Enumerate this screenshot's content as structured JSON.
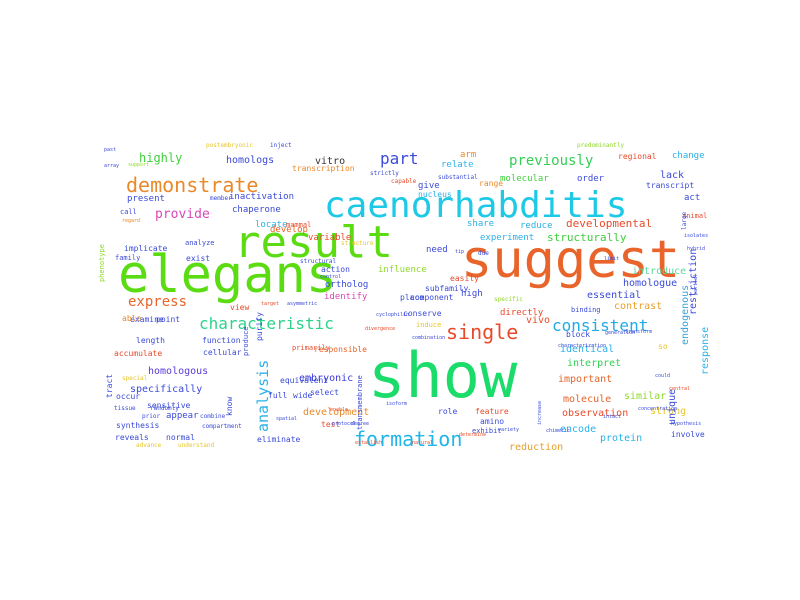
{
  "wordcloud": {
    "words": [
      {
        "text": "show",
        "color": "#1bdc6a"
      },
      {
        "text": "suggest",
        "color": "#e8642a"
      },
      {
        "text": "elegans",
        "color": "#5adb12"
      },
      {
        "text": "result",
        "color": "#5adb12"
      },
      {
        "text": "caenorhabditis",
        "color": "#1ec9e6"
      },
      {
        "text": "formation",
        "color": "#21b5e8"
      },
      {
        "text": "demonstrate",
        "color": "#e8892a"
      },
      {
        "text": "characteristic",
        "color": "#2dd38a"
      },
      {
        "text": "single",
        "color": "#e84a2a"
      },
      {
        "text": "consistent",
        "color": "#21a9e8"
      },
      {
        "text": "part",
        "color": "#3a4ad8"
      },
      {
        "text": "previously",
        "color": "#33cf55"
      },
      {
        "text": "analysis",
        "color": "#2ab1e8"
      },
      {
        "text": "provide",
        "color": "#d84ab8"
      },
      {
        "text": "express",
        "color": "#e8642a"
      },
      {
        "text": "highly",
        "color": "#3fcf3c"
      },
      {
        "text": "homologs",
        "color": "#3a4ad8"
      },
      {
        "text": "vitro",
        "color": "#333333"
      },
      {
        "text": "developmental",
        "color": "#e84a2a"
      },
      {
        "text": "structurally",
        "color": "#3fcf3c"
      },
      {
        "text": "specifically",
        "color": "#3a4ad8"
      },
      {
        "text": "homologous",
        "color": "#5a3ad8"
      },
      {
        "text": "embryonic",
        "color": "#3a3ad8"
      },
      {
        "text": "development",
        "color": "#e88a2a"
      },
      {
        "text": "observation",
        "color": "#e84a2a"
      },
      {
        "text": "reduction",
        "color": "#e8a02a"
      },
      {
        "text": "protein",
        "color": "#2ab1e8"
      },
      {
        "text": "identical",
        "color": "#2ab1e8"
      },
      {
        "text": "interpret",
        "color": "#33cf55"
      },
      {
        "text": "important",
        "color": "#e8642a"
      },
      {
        "text": "molecule",
        "color": "#e8642a"
      },
      {
        "text": "encode",
        "color": "#2ab1e8"
      },
      {
        "text": "similar",
        "color": "#8fd82a"
      },
      {
        "text": "strong",
        "color": "#e8c62a"
      },
      {
        "text": "contrast",
        "color": "#e8a02a"
      },
      {
        "text": "essential",
        "color": "#3a4ad8"
      },
      {
        "text": "homologue",
        "color": "#3a4ad8"
      },
      {
        "text": "introduce",
        "color": "#5ad8a0"
      },
      {
        "text": "restriction",
        "color": "#3a4ad8"
      },
      {
        "text": "response",
        "color": "#2ab1e8"
      },
      {
        "text": "unique",
        "color": "#3a4ad8"
      },
      {
        "text": "endogenous",
        "color": "#3aa0d8"
      },
      {
        "text": "lack",
        "color": "#3a4ad8"
      },
      {
        "text": "act",
        "color": "#3a4ad8"
      },
      {
        "text": "change",
        "color": "#2ab1e8"
      },
      {
        "text": "transcript",
        "color": "#3a4ad8"
      },
      {
        "text": "regional",
        "color": "#e84a2a"
      },
      {
        "text": "molecular",
        "color": "#3fcf3c"
      },
      {
        "text": "order",
        "color": "#3a4ad8"
      },
      {
        "text": "arm",
        "color": "#e8892a"
      },
      {
        "text": "relate",
        "color": "#2ab1e8"
      },
      {
        "text": "transcription",
        "color": "#e8892a"
      },
      {
        "text": "inactivation",
        "color": "#3a4ad8"
      },
      {
        "text": "chaperone",
        "color": "#3a4ad8"
      },
      {
        "text": "present",
        "color": "#3a4ad8"
      },
      {
        "text": "locate",
        "color": "#2ab1e8"
      },
      {
        "text": "develop",
        "color": "#e8642a"
      },
      {
        "text": "variable",
        "color": "#e84a2a"
      },
      {
        "text": "give",
        "color": "#3a4ad8"
      },
      {
        "text": "nucleus",
        "color": "#2ab1e8"
      },
      {
        "text": "range",
        "color": "#e8892a"
      },
      {
        "text": "share",
        "color": "#2ab1e8"
      },
      {
        "text": "experiment",
        "color": "#2ab1e8"
      },
      {
        "text": "reduce",
        "color": "#2ab1e8"
      },
      {
        "text": "need",
        "color": "#3a4ad8"
      },
      {
        "text": "influence",
        "color": "#8fd82a"
      },
      {
        "text": "exist",
        "color": "#3a4ad8"
      },
      {
        "text": "implicate",
        "color": "#3a4ad8"
      },
      {
        "text": "examine",
        "color": "#3a4ad8"
      },
      {
        "text": "action",
        "color": "#3a4ad8"
      },
      {
        "text": "ortholog",
        "color": "#3a4ad8"
      },
      {
        "text": "identify",
        "color": "#d84ab8"
      },
      {
        "text": "high",
        "color": "#3a4ad8"
      },
      {
        "text": "subfamily",
        "color": "#3a4ad8"
      },
      {
        "text": "vivo",
        "color": "#e84a2a"
      },
      {
        "text": "directly",
        "color": "#e84a2a"
      },
      {
        "text": "point",
        "color": "#3a4ad8"
      },
      {
        "text": "view",
        "color": "#e84a2a"
      },
      {
        "text": "able",
        "color": "#e8892a"
      },
      {
        "text": "length",
        "color": "#3a4ad8"
      },
      {
        "text": "function",
        "color": "#3a4ad8"
      },
      {
        "text": "cellular",
        "color": "#3a4ad8"
      },
      {
        "text": "accumulate",
        "color": "#e84a2a"
      },
      {
        "text": "responsible",
        "color": "#e8642a"
      },
      {
        "text": "select",
        "color": "#3a4ad8"
      },
      {
        "text": "conserve",
        "color": "#3a4ad8"
      },
      {
        "text": "component",
        "color": "#3a4ad8"
      },
      {
        "text": "easily",
        "color": "#e84a2a"
      },
      {
        "text": "equivalent",
        "color": "#3a4ad8"
      },
      {
        "text": "occur",
        "color": "#3a4ad8"
      },
      {
        "text": "appear",
        "color": "#3a4ad8"
      },
      {
        "text": "sensitive",
        "color": "#3a4ad8"
      },
      {
        "text": "full",
        "color": "#3a4ad8"
      },
      {
        "text": "wide",
        "color": "#3a4ad8"
      },
      {
        "text": "test",
        "color": "#e84a2a"
      },
      {
        "text": "role",
        "color": "#3a4ad8"
      },
      {
        "text": "feature",
        "color": "#e84a2a"
      },
      {
        "text": "eliminate",
        "color": "#3a4ad8"
      },
      {
        "text": "normal",
        "color": "#3a4ad8"
      },
      {
        "text": "reveals",
        "color": "#3a4ad8"
      },
      {
        "text": "synthesis",
        "color": "#3a4ad8"
      },
      {
        "text": "amino",
        "color": "#3a4ad8"
      },
      {
        "text": "block",
        "color": "#3a4ad8"
      },
      {
        "text": "tract",
        "color": "#3a4ad8"
      },
      {
        "text": "purify",
        "color": "#3a4ad8"
      },
      {
        "text": "produce",
        "color": "#3a4ad8"
      },
      {
        "text": "know",
        "color": "#3a4ad8"
      },
      {
        "text": "involve",
        "color": "#3a4ad8"
      },
      {
        "text": "so",
        "color": "#e8c62a"
      },
      {
        "text": "exhibit",
        "color": "#3a4ad8"
      },
      {
        "text": "transmembrane",
        "color": "#3a4ad8"
      },
      {
        "text": "primarily",
        "color": "#e84a2a"
      },
      {
        "text": "induce",
        "color": "#e8c62a"
      },
      {
        "text": "binding",
        "color": "#3a4ad8"
      },
      {
        "text": "mammal",
        "color": "#e84a2a"
      },
      {
        "text": "animal",
        "color": "#e84a2a"
      },
      {
        "text": "phenotype",
        "color": "#8fd82a"
      },
      {
        "text": "family",
        "color": "#3a4ad8"
      },
      {
        "text": "call",
        "color": "#3a4ad8"
      },
      {
        "text": "analyze",
        "color": "#3a4ad8"
      },
      {
        "text": "member",
        "color": "#3a4ad8"
      },
      {
        "text": "strictly",
        "color": "#3a4ad8"
      },
      {
        "text": "capable",
        "color": "#e84a2a"
      },
      {
        "text": "substantial",
        "color": "#3a4ad8"
      },
      {
        "text": "postembryonic",
        "color": "#e8c62a"
      },
      {
        "text": "inject",
        "color": "#3a4ad8"
      },
      {
        "text": "predominantly",
        "color": "#8fd82a"
      },
      {
        "text": "tissue",
        "color": "#3a4ad8"
      },
      {
        "text": "randomly",
        "color": "#3a4ad8"
      },
      {
        "text": "special",
        "color": "#e8c62a"
      },
      {
        "text": "prior",
        "color": "#3a4ad8"
      },
      {
        "text": "combine",
        "color": "#3a4ad8"
      },
      {
        "text": "compartment",
        "color": "#3a4ad8"
      },
      {
        "text": "advance",
        "color": "#e8c62a"
      },
      {
        "text": "understand",
        "color": "#e8c62a"
      },
      {
        "text": "past",
        "color": "#3a4ad8"
      },
      {
        "text": "array",
        "color": "#3a4ad8"
      },
      {
        "text": "support",
        "color": "#8fd82a"
      },
      {
        "text": "regard",
        "color": "#e8892a"
      },
      {
        "text": "structure",
        "color": "#e8c62a"
      },
      {
        "text": "structural",
        "color": "#3a4ad8"
      },
      {
        "text": "control",
        "color": "#3a4ad8"
      },
      {
        "text": "cyclophilin",
        "color": "#3a4ad8"
      },
      {
        "text": "specific",
        "color": "#8fd82a"
      },
      {
        "text": "due",
        "color": "#3a4ad8"
      },
      {
        "text": "tip",
        "color": "#3a4ad8"
      },
      {
        "text": "limit",
        "color": "#3a4ad8"
      },
      {
        "text": "large",
        "color": "#3a4ad8"
      },
      {
        "text": "isolates",
        "color": "#3a4ad8"
      },
      {
        "text": "hybrid",
        "color": "#3a4ad8"
      },
      {
        "text": "partial",
        "color": "#3a4ad8"
      },
      {
        "text": "generation",
        "color": "#3a4ad8"
      },
      {
        "text": "transform",
        "color": "#3a4ad8"
      },
      {
        "text": "concentration",
        "color": "#3a4ad8"
      },
      {
        "text": "hypothesis",
        "color": "#3a4ad8"
      },
      {
        "text": "central",
        "color": "#e84a2a"
      },
      {
        "text": "increase",
        "color": "#3a4ad8"
      },
      {
        "text": "chimeric",
        "color": "#3a4ad8"
      },
      {
        "text": "variety",
        "color": "#3a4ad8"
      },
      {
        "text": "determine",
        "color": "#e84a2a"
      },
      {
        "text": "natural",
        "color": "#e84a2a"
      },
      {
        "text": "establish",
        "color": "#e84a2a"
      },
      {
        "text": "isoform",
        "color": "#3a4ad8"
      },
      {
        "text": "protocol",
        "color": "#3a4ad8"
      },
      {
        "text": "degree",
        "color": "#3a4ad8"
      },
      {
        "text": "spatial",
        "color": "#3a4ad8"
      },
      {
        "text": "enable",
        "color": "#e84a2a"
      },
      {
        "text": "characterization",
        "color": "#3a4ad8"
      },
      {
        "text": "target",
        "color": "#e84a2a"
      },
      {
        "text": "asymmetric",
        "color": "#3a4ad8"
      },
      {
        "text": "combination",
        "color": "#3a4ad8"
      },
      {
        "text": "divergence",
        "color": "#e84a2a"
      },
      {
        "text": "intact",
        "color": "#3a4ad8"
      },
      {
        "text": "could",
        "color": "#3a4ad8"
      },
      {
        "text": "place",
        "color": "#3a4ad8"
      }
    ]
  }
}
